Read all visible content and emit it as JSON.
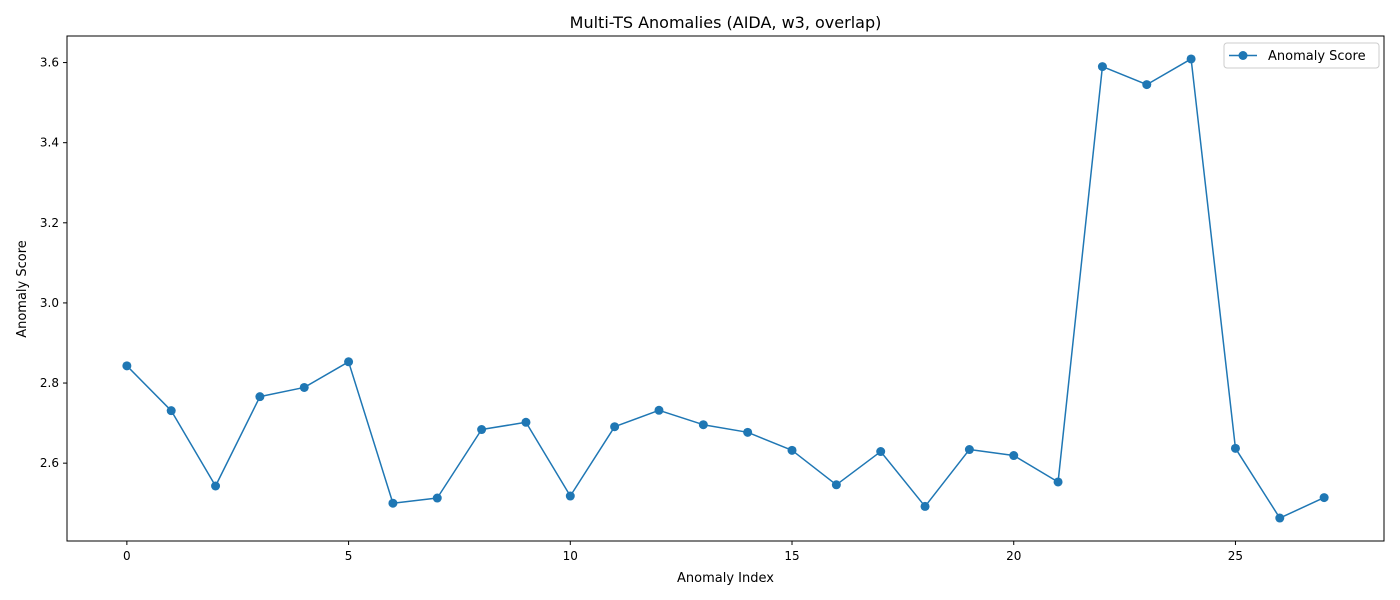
{
  "chart_data": {
    "type": "line",
    "title": "Multi-TS Anomalies (AIDA, w3, overlap)",
    "xlabel": "Anomaly Index",
    "ylabel": "Anomaly Score",
    "x": [
      0,
      1,
      2,
      3,
      4,
      5,
      6,
      7,
      8,
      9,
      10,
      11,
      12,
      13,
      14,
      15,
      16,
      17,
      18,
      19,
      20,
      21,
      22,
      23,
      24,
      25,
      26,
      27
    ],
    "series": [
      {
        "name": "Anomaly Score",
        "color": "#1f77b4",
        "marker": "circle",
        "values": [
          2.843,
          2.731,
          2.543,
          2.766,
          2.789,
          2.853,
          2.5,
          2.513,
          2.684,
          2.702,
          2.518,
          2.691,
          2.732,
          2.696,
          2.677,
          2.632,
          2.546,
          2.629,
          2.492,
          2.634,
          2.619,
          2.553,
          3.59,
          3.545,
          3.609,
          2.637,
          2.463,
          2.514
        ]
      }
    ],
    "xlim": [
      -1.35,
      28.35
    ],
    "ylim": [
      2.4057,
      3.6663
    ],
    "xticks": [
      0,
      5,
      10,
      15,
      20,
      25
    ],
    "xtick_labels": [
      "0",
      "5",
      "10",
      "15",
      "20",
      "25"
    ],
    "yticks": [
      2.6,
      2.8,
      3.0,
      3.2,
      3.4,
      3.6
    ],
    "ytick_labels": [
      "2.6",
      "2.8",
      "3.0",
      "3.2",
      "3.4",
      "3.6"
    ],
    "grid": false,
    "legend_position": "top-right"
  }
}
